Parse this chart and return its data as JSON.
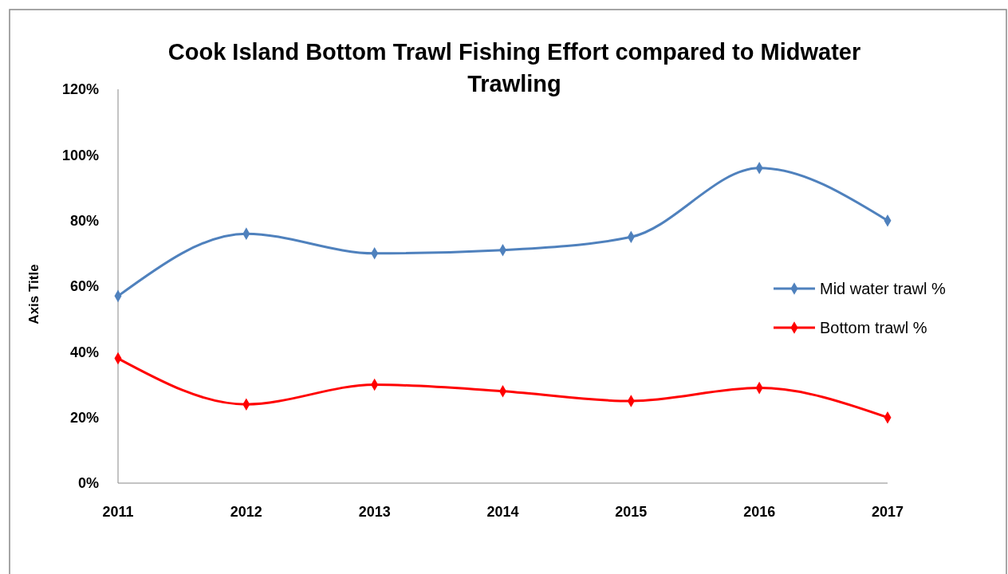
{
  "chart_data": {
    "type": "line",
    "title": "Cook Island Bottom Trawl  Fishing Effort compared to Midwater Trawling",
    "ylabel": "Axis Title",
    "categories": [
      "2011",
      "2012",
      "2013",
      "2014",
      "2015",
      "2016",
      "2017"
    ],
    "series": [
      {
        "name": "Mid water trawl %",
        "color": "#4f81bd",
        "values": [
          57,
          76,
          70,
          71,
          75,
          96,
          80
        ]
      },
      {
        "name": "Bottom trawl %",
        "color": "#ff0000",
        "values": [
          38,
          24,
          30,
          28,
          25,
          29,
          20
        ]
      }
    ],
    "ylim": [
      0,
      120
    ],
    "yticks": [
      {
        "value": 0,
        "label": "0%"
      },
      {
        "value": 20,
        "label": "20%"
      },
      {
        "value": 40,
        "label": "40%"
      },
      {
        "value": 60,
        "label": "60%"
      },
      {
        "value": 80,
        "label": "80%"
      },
      {
        "value": 100,
        "label": "100%"
      },
      {
        "value": 120,
        "label": "120%"
      }
    ],
    "legend": "right",
    "marker": "diamond",
    "line_style": "solid",
    "grid": false
  }
}
